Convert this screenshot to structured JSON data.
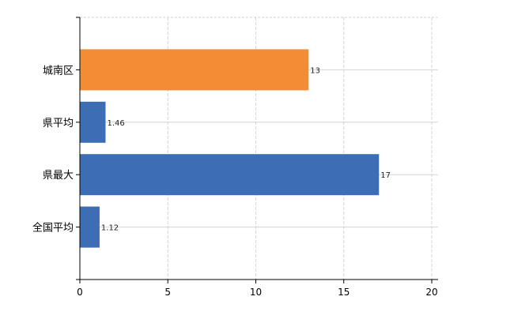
{
  "chart_data": {
    "type": "bar",
    "orientation": "horizontal",
    "categories": [
      "城南区",
      "県平均",
      "県最大",
      "全国平均"
    ],
    "values": [
      13,
      1.46,
      17,
      1.12
    ],
    "value_labels": [
      "13",
      "1.46",
      "17",
      "1.12"
    ],
    "bar_colors": [
      "#f28c35",
      "#3d6db5",
      "#3d6db5",
      "#3d6db5"
    ],
    "xlim": [
      0,
      20
    ],
    "x_ticks": [
      0,
      5,
      10,
      15,
      20
    ],
    "x_tick_labels": [
      "0",
      "5",
      "10",
      "15",
      "20"
    ],
    "grid": true,
    "title": "",
    "xlabel": "",
    "ylabel": ""
  }
}
